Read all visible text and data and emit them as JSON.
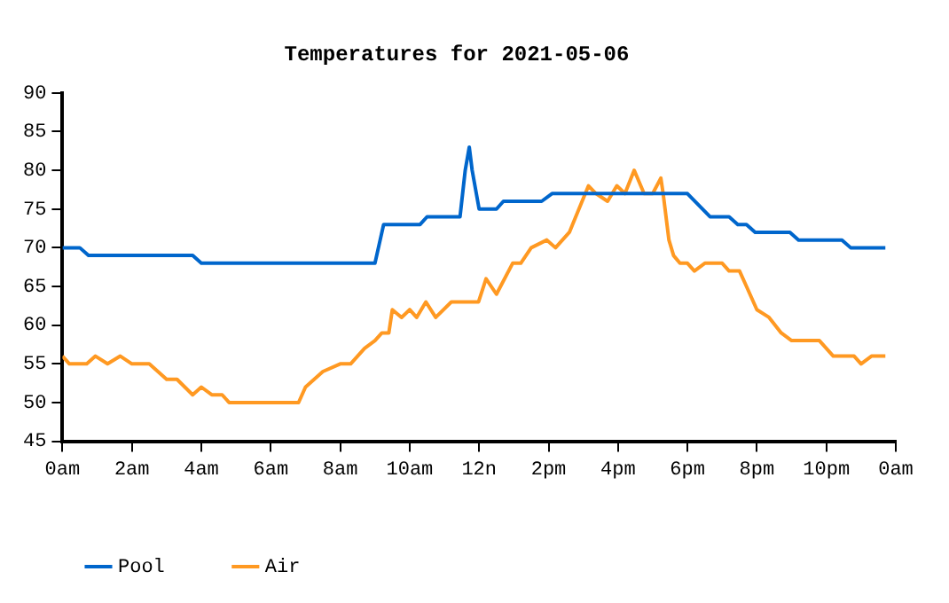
{
  "chart_data": {
    "type": "line",
    "title": "Temperatures for 2021-05-06",
    "xlim": [
      "2021-05-06T00:00",
      "2021-05-07T00:00"
    ],
    "xticks": [
      {
        "value": "2021-05-06T00:00",
        "label": "0am"
      },
      {
        "value": "2021-05-06T02:00",
        "label": "2am"
      },
      {
        "value": "2021-05-06T04:00",
        "label": "4am"
      },
      {
        "value": "2021-05-06T06:00",
        "label": "6am"
      },
      {
        "value": "2021-05-06T08:00",
        "label": "8am"
      },
      {
        "value": "2021-05-06T10:00",
        "label": "10am"
      },
      {
        "value": "2021-05-06T12:00",
        "label": "12n"
      },
      {
        "value": "2021-05-06T14:00",
        "label": "2pm"
      },
      {
        "value": "2021-05-06T16:00",
        "label": "4pm"
      },
      {
        "value": "2021-05-06T18:00",
        "label": "6pm"
      },
      {
        "value": "2021-05-06T20:00",
        "label": "8pm"
      },
      {
        "value": "2021-05-06T22:00",
        "label": "10pm"
      },
      {
        "value": "2021-05-07T00:00",
        "label": "0am"
      }
    ],
    "ylim": [
      45,
      90
    ],
    "yticks": [
      45,
      50,
      55,
      60,
      65,
      70,
      75,
      80,
      85,
      90
    ],
    "grid": false,
    "legend": "bottom left",
    "marker": "none",
    "line_style": "solid",
    "series": [
      {
        "name": "Pool",
        "color": "#0066cc",
        "x": [
          "2021-05-06T00:00",
          "2021-05-06T00:30",
          "2021-05-06T00:45",
          "2021-05-06T03:45",
          "2021-05-06T04:00",
          "2021-05-06T09:00",
          "2021-05-06T09:15",
          "2021-05-06T10:18",
          "2021-05-06T10:30",
          "2021-05-06T11:27",
          "2021-05-06T11:36",
          "2021-05-06T11:43",
          "2021-05-06T11:48",
          "2021-05-06T12:00",
          "2021-05-06T12:30",
          "2021-05-06T12:42",
          "2021-05-06T13:48",
          "2021-05-06T14:06",
          "2021-05-06T18:00",
          "2021-05-06T18:39",
          "2021-05-06T19:12",
          "2021-05-06T19:27",
          "2021-05-06T19:42",
          "2021-05-06T19:57",
          "2021-05-06T20:57",
          "2021-05-06T21:12",
          "2021-05-06T22:27",
          "2021-05-06T22:42",
          "2021-05-06T23:42"
        ],
        "values": [
          70,
          70,
          69,
          69,
          68,
          68,
          73,
          73,
          74,
          74,
          80,
          83,
          80,
          75,
          75,
          76,
          76,
          77,
          77,
          74,
          74,
          73,
          73,
          72,
          72,
          71,
          71,
          70,
          70
        ]
      },
      {
        "name": "Air",
        "color": "#ff9922",
        "x": [
          "2021-05-06T00:00",
          "2021-05-06T00:12",
          "2021-05-06T00:42",
          "2021-05-06T00:57",
          "2021-05-06T01:18",
          "2021-05-06T01:40",
          "2021-05-06T02:00",
          "2021-05-06T02:30",
          "2021-05-06T03:00",
          "2021-05-06T03:18",
          "2021-05-06T03:45",
          "2021-05-06T04:00",
          "2021-05-06T04:18",
          "2021-05-06T04:36",
          "2021-05-06T04:48",
          "2021-05-06T06:48",
          "2021-05-06T07:00",
          "2021-05-06T07:30",
          "2021-05-06T08:00",
          "2021-05-06T08:18",
          "2021-05-06T08:42",
          "2021-05-06T09:00",
          "2021-05-06T09:12",
          "2021-05-06T09:24",
          "2021-05-06T09:30",
          "2021-05-06T09:46",
          "2021-05-06T10:00",
          "2021-05-06T10:12",
          "2021-05-06T10:28",
          "2021-05-06T10:45",
          "2021-05-06T11:12",
          "2021-05-06T11:59",
          "2021-05-06T12:12",
          "2021-05-06T12:30",
          "2021-05-06T12:58",
          "2021-05-06T13:12",
          "2021-05-06T13:30",
          "2021-05-06T13:57",
          "2021-05-06T14:12",
          "2021-05-06T14:36",
          "2021-05-06T15:09",
          "2021-05-06T15:22",
          "2021-05-06T15:42",
          "2021-05-06T15:58",
          "2021-05-06T16:12",
          "2021-05-06T16:28",
          "2021-05-06T16:45",
          "2021-05-06T17:00",
          "2021-05-06T17:14",
          "2021-05-06T17:18",
          "2021-05-06T17:28",
          "2021-05-06T17:36",
          "2021-05-06T17:47",
          "2021-05-06T18:00",
          "2021-05-06T18:12",
          "2021-05-06T18:30",
          "2021-05-06T19:00",
          "2021-05-06T19:12",
          "2021-05-06T19:30",
          "2021-05-06T19:42",
          "2021-05-06T20:00",
          "2021-05-06T20:21",
          "2021-05-06T20:42",
          "2021-05-06T21:00",
          "2021-05-06T21:48",
          "2021-05-06T22:12",
          "2021-05-06T22:48",
          "2021-05-06T23:00",
          "2021-05-06T23:18",
          "2021-05-06T23:42"
        ],
        "values": [
          56,
          55,
          55,
          56,
          55,
          56,
          55,
          55,
          53,
          53,
          51,
          52,
          51,
          51,
          50,
          50,
          52,
          54,
          55,
          55,
          57,
          58,
          59,
          59,
          62,
          61,
          62,
          61,
          63,
          61,
          63,
          63,
          66,
          64,
          68,
          68,
          70,
          71,
          70,
          72,
          78,
          77,
          76,
          78,
          77,
          80,
          77,
          77,
          79,
          77,
          71,
          69,
          68,
          68,
          67,
          68,
          68,
          67,
          67,
          65,
          62,
          61,
          59,
          58,
          58,
          56,
          56,
          55,
          56,
          56
        ]
      }
    ]
  }
}
